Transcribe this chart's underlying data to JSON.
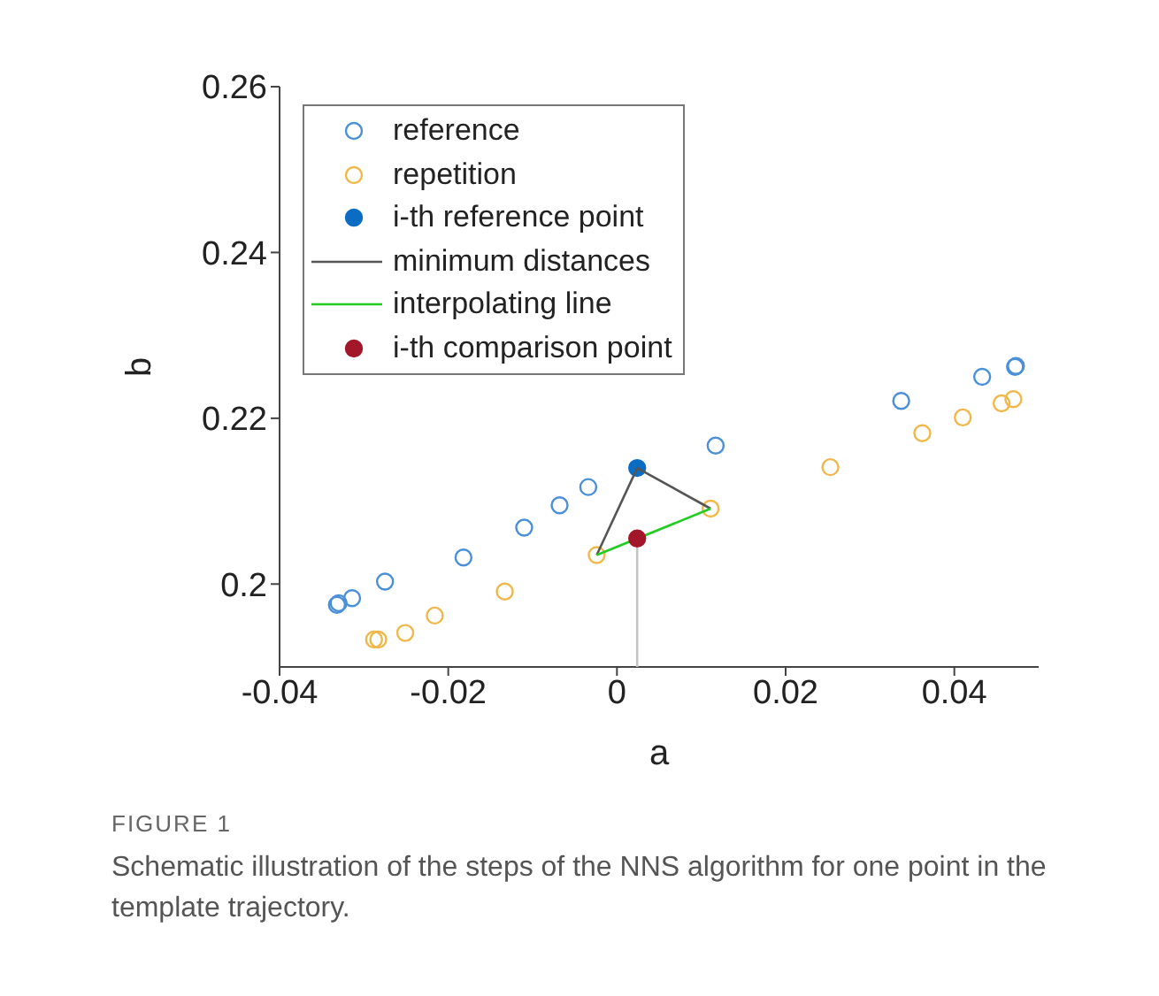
{
  "chart_data": {
    "type": "scatter",
    "xlabel": "a",
    "ylabel": "b",
    "xlim": [
      -0.04,
      0.05
    ],
    "ylim": [
      0.19,
      0.26
    ],
    "xticks": [
      -0.04,
      -0.02,
      0,
      0.02,
      0.04
    ],
    "yticks": [
      0.2,
      0.22,
      0.24,
      0.26
    ],
    "grid": false,
    "legend": "top left",
    "series": [
      {
        "name": "reference",
        "marker": "circle",
        "color": "#4a90d9",
        "x": [
          -0.0332,
          -0.033,
          -0.0314,
          -0.0275,
          -0.0182,
          -0.011,
          -0.0068,
          -0.0034,
          0.0117,
          0.0337,
          0.0433,
          0.0472,
          0.0473
        ],
        "values": [
          0.1975,
          0.1977,
          0.1983,
          0.2003,
          0.2032,
          0.2068,
          0.2095,
          0.2117,
          0.2167,
          0.2221,
          0.225,
          0.2262,
          0.2263
        ]
      },
      {
        "name": "repetition",
        "marker": "circle",
        "color": "#f0b84a",
        "x": [
          -0.0288,
          -0.0283,
          -0.0251,
          -0.0216,
          -0.0133,
          -0.0024,
          0.0111,
          0.0253,
          0.0362,
          0.041,
          0.0456,
          0.047
        ],
        "values": [
          0.1933,
          0.1933,
          0.1941,
          0.1962,
          0.1991,
          0.2035,
          0.2091,
          0.2141,
          0.2182,
          0.2201,
          0.2218,
          0.2223
        ]
      },
      {
        "name": "i-th reference point",
        "marker": "circle",
        "color": "#0b6cc4",
        "x": [
          0.0024
        ],
        "values": [
          0.214
        ]
      },
      {
        "name": "minimum distances",
        "type": "line",
        "marker": "none",
        "color": "#555555",
        "x": [
          -0.0024,
          0.0024,
          0.0111
        ],
        "values": [
          0.2035,
          0.214,
          0.2091
        ]
      },
      {
        "name": "interpolating line",
        "type": "line",
        "marker": "none",
        "color": "#22cc22",
        "x": [
          -0.0024,
          0.0111
        ],
        "values": [
          0.2035,
          0.2091
        ]
      },
      {
        "type": "line",
        "marker": "none",
        "color": "#c4c4c4",
        "x": [
          0.0024,
          0.0024
        ],
        "values": [
          0.2055,
          0.19
        ]
      },
      {
        "name": "i-th comparison point",
        "marker": "circle",
        "color": "#a3172a",
        "x": [
          0.0024
        ],
        "values": [
          0.2055
        ]
      }
    ],
    "annotations": [
      "FIGURE 1",
      "Schematic illustration of the steps of the NNS algorithm for one point in the template trajectory."
    ]
  }
}
